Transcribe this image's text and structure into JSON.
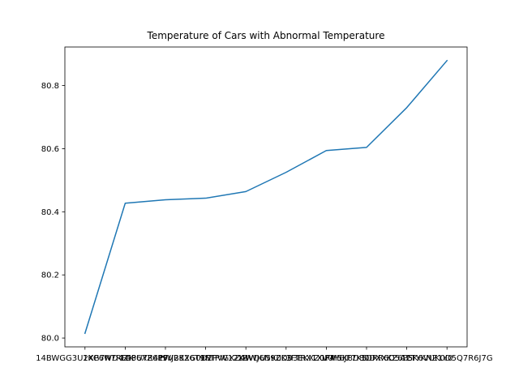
{
  "chart_data": {
    "type": "line",
    "title": "Temperature of Cars with Abnormal Temperature",
    "xlabel": "",
    "ylabel": "",
    "categories": [
      "14BWGG3U2XP6WD4ZK",
      "1KG7N7RF4P6XZ6P9",
      "1G3U7R4PWJ2KX6T9N",
      "1FVB82G0D2PVGXZ4W",
      "1FTPW12X4WJ6N9ZK3",
      "1BVDU5K0D93EKXZ0P4",
      "1FTRX1XV0H6JF7K5",
      "1FM5K8D80DXXKZ6P5",
      "1DRR6D5A2TYKNZ1Y0",
      "1GK6VUK0D5Q7R6J7G"
    ],
    "values": [
      80.015,
      80.427,
      80.438,
      80.443,
      80.464,
      80.525,
      80.594,
      80.604,
      80.73,
      80.879
    ],
    "ylim": [
      79.972,
      80.922
    ],
    "yticks": [
      80.0,
      80.2,
      80.4,
      80.6,
      80.8
    ],
    "grid": false,
    "legend": "none",
    "line_color": "#1f77b4"
  }
}
